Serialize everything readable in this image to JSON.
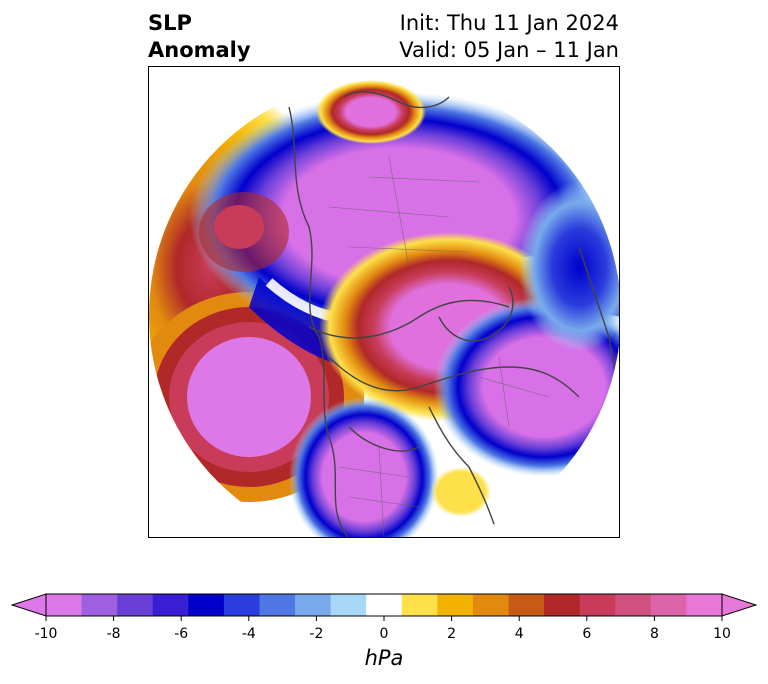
{
  "title": {
    "line1": "SLP",
    "line2": "Anomaly",
    "init": "Init: Thu 11 Jan 2024",
    "valid": "Valid: 05 Jan – 11 Jan"
  },
  "colorbar": {
    "unit": "hPa",
    "levels": [
      -10,
      -9,
      -8,
      -7,
      -6,
      -5,
      -4,
      -3,
      -2,
      -1,
      1,
      2,
      3,
      4,
      5,
      6,
      7,
      8,
      9,
      10
    ],
    "ticks": [
      "-10",
      "-8",
      "-6",
      "-4",
      "-2",
      "0",
      "2",
      "4",
      "6",
      "8",
      "10"
    ],
    "colors": [
      "#dc78e8",
      "#9e5fe0",
      "#6a3fd8",
      "#3a1ed4",
      "#0000cc",
      "#2a3cdc",
      "#4f78e4",
      "#78aaec",
      "#a8d8f8",
      "#ffffff",
      "#fde04a",
      "#f2b200",
      "#e28a10",
      "#c85a18",
      "#b02828",
      "#c83c5a",
      "#d05080",
      "#dc64a8",
      "#e878d8"
    ],
    "under_color": "#dc78e8",
    "over_color": "#e878d8"
  },
  "map_colors": {
    "neg_strong": "#d870e8",
    "neg_mid": "#3a1ed4",
    "neg_weak": "#78aaec",
    "pos_strong": "#e070dc",
    "pos_mid": "#b02828",
    "pos_weak": "#f2b200",
    "coast": "#444444"
  }
}
